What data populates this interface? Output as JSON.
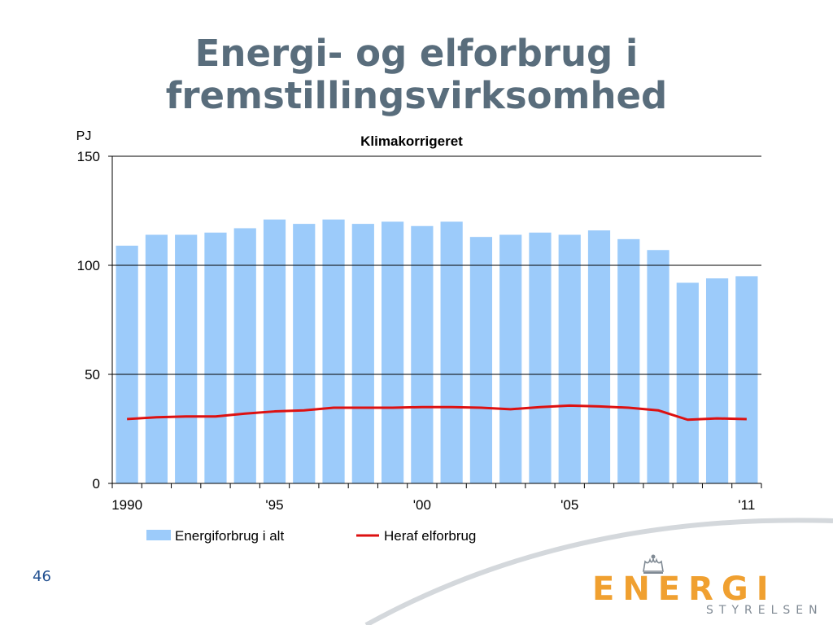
{
  "slide": {
    "title_line1": "Energi- og elforbrug i",
    "title_line2": "fremstillingsvirksomhed",
    "page_number": "46"
  },
  "logo": {
    "text": "ENERGI",
    "subtext": "STYRELSEN",
    "icon": "crown-icon",
    "accent_color": "#f0a030"
  },
  "chart_data": {
    "type": "bar",
    "title": "Klimakorrigeret",
    "ylabel": "PJ",
    "ylim": [
      0,
      150
    ],
    "yticks": [
      0,
      50,
      100,
      150
    ],
    "x_tick_labels": [
      {
        "year": 1990,
        "label": "1990"
      },
      {
        "year": 1995,
        "label": "'95"
      },
      {
        "year": 2000,
        "label": "'00"
      },
      {
        "year": 2005,
        "label": "'05"
      },
      {
        "year": 2011,
        "label": "'11"
      }
    ],
    "categories": [
      1990,
      1991,
      1992,
      1993,
      1994,
      1995,
      1996,
      1997,
      1998,
      1999,
      2000,
      2001,
      2002,
      2003,
      2004,
      2005,
      2006,
      2007,
      2008,
      2009,
      2010,
      2011
    ],
    "series": [
      {
        "name": "Energiforbrug i alt",
        "type": "bar",
        "color": "#9ccbfa",
        "values": [
          109,
          114,
          114,
          115,
          117,
          121,
          119,
          121,
          119,
          120,
          118,
          120,
          113,
          114,
          115,
          114,
          116,
          112,
          107,
          92,
          94,
          95
        ]
      },
      {
        "name": "Heraf elforbrug",
        "type": "line",
        "color": "#dd1111",
        "values": [
          29.5,
          30.3,
          30.7,
          30.7,
          32,
          33,
          33.5,
          34.7,
          34.7,
          34.7,
          35,
          35,
          34.7,
          34,
          35,
          35.7,
          35.3,
          34.7,
          33.5,
          29.2,
          29.8,
          29.5
        ]
      }
    ],
    "grid": true,
    "legend_position": "bottom"
  }
}
